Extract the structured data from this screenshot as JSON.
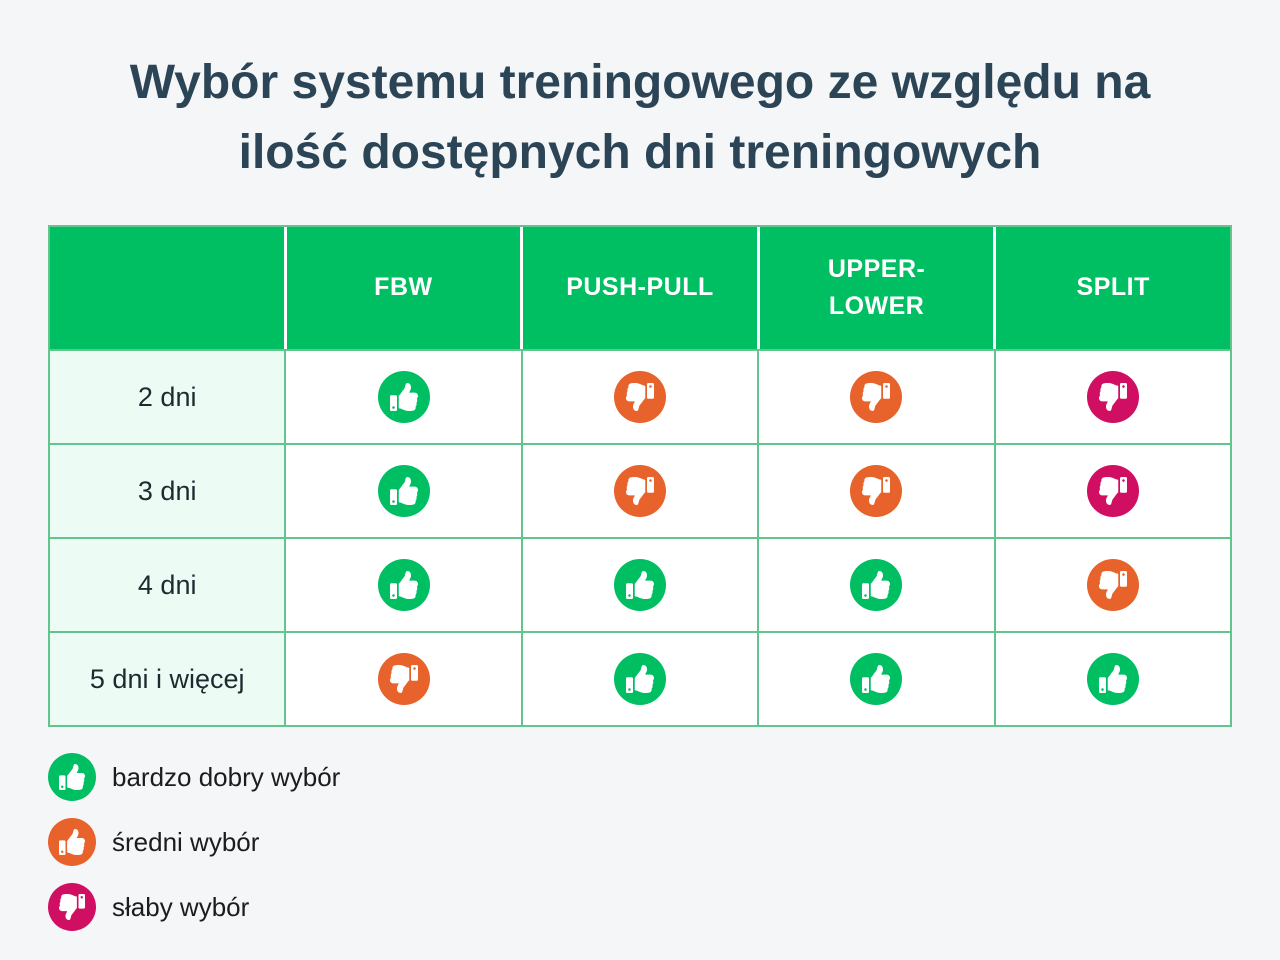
{
  "title": {
    "line1": "Wybór systemu treningowego ze względu na",
    "line2": "ilość dostępnych dni treningowych"
  },
  "table": {
    "corner_label": "",
    "columns": [
      "FBW",
      "PUSH-PULL",
      "UPPER-\nLOWER",
      "SPLIT"
    ],
    "rows": [
      {
        "label": "2 dni",
        "cells": [
          {
            "icon": "thumb-up-icon",
            "tone": "green",
            "meaning": "bardzo dobry wybór"
          },
          {
            "icon": "thumb-down-icon",
            "tone": "orange",
            "meaning": "średni wybór"
          },
          {
            "icon": "thumb-down-icon",
            "tone": "orange",
            "meaning": "średni wybór"
          },
          {
            "icon": "thumb-down-icon",
            "tone": "pink",
            "meaning": "słaby wybór"
          }
        ]
      },
      {
        "label": "3 dni",
        "cells": [
          {
            "icon": "thumb-up-icon",
            "tone": "green",
            "meaning": "bardzo dobry wybór"
          },
          {
            "icon": "thumb-down-icon",
            "tone": "orange",
            "meaning": "średni wybór"
          },
          {
            "icon": "thumb-down-icon",
            "tone": "orange",
            "meaning": "średni wybór"
          },
          {
            "icon": "thumb-down-icon",
            "tone": "pink",
            "meaning": "słaby wybór"
          }
        ]
      },
      {
        "label": "4 dni",
        "cells": [
          {
            "icon": "thumb-up-icon",
            "tone": "green",
            "meaning": "bardzo dobry wybór"
          },
          {
            "icon": "thumb-up-icon",
            "tone": "green",
            "meaning": "bardzo dobry wybór"
          },
          {
            "icon": "thumb-up-icon",
            "tone": "green",
            "meaning": "bardzo dobry wybór"
          },
          {
            "icon": "thumb-down-icon",
            "tone": "orange",
            "meaning": "średni wybór"
          }
        ]
      },
      {
        "label": "5 dni i więcej",
        "cells": [
          {
            "icon": "thumb-down-icon",
            "tone": "orange",
            "meaning": "średni wybór"
          },
          {
            "icon": "thumb-up-icon",
            "tone": "green",
            "meaning": "bardzo dobry wybór"
          },
          {
            "icon": "thumb-up-icon",
            "tone": "green",
            "meaning": "bardzo dobry wybór"
          },
          {
            "icon": "thumb-up-icon",
            "tone": "green",
            "meaning": "bardzo dobry wybór"
          }
        ]
      }
    ]
  },
  "legend": {
    "items": [
      {
        "label": "bardzo dobry wybór",
        "icon": "thumb-up-icon",
        "tone": "green"
      },
      {
        "label": "średni wybór",
        "icon": "thumb-up-icon",
        "tone": "orange"
      },
      {
        "label": "słaby wybór",
        "icon": "thumb-down-icon",
        "tone": "pink"
      }
    ]
  },
  "colors": {
    "green": "#00bf63",
    "orange": "#e8622b",
    "pink": "#d00f62",
    "header_bg": "#00bf63",
    "header_text": "#ffffff",
    "row_label_bg": "#ecfbf3",
    "table_border": "#62c58e",
    "page_bg": "#f5f6f7",
    "title_text": "#2b4557",
    "body_text": "#1f2a30"
  },
  "chart_data": {
    "type": "table",
    "title": "Wybór systemu treningowego ze względu na ilość dostępnych dni treningowych",
    "columns": [
      "FBW",
      "PUSH-PULL",
      "UPPER-LOWER",
      "SPLIT"
    ],
    "row_labels": [
      "2 dni",
      "3 dni",
      "4 dni",
      "5 dni i więcej"
    ],
    "values": [
      [
        "bardzo dobry wybór",
        "średni wybór",
        "średni wybór",
        "słaby wybór"
      ],
      [
        "bardzo dobry wybór",
        "średni wybór",
        "średni wybór",
        "słaby wybór"
      ],
      [
        "bardzo dobry wybór",
        "bardzo dobry wybór",
        "bardzo dobry wybór",
        "średni wybór"
      ],
      [
        "średni wybór",
        "bardzo dobry wybór",
        "bardzo dobry wybór",
        "bardzo dobry wybór"
      ]
    ],
    "legend": [
      "bardzo dobry wybór",
      "średni wybór",
      "słaby wybór"
    ],
    "legend_position": "bottom-left"
  }
}
